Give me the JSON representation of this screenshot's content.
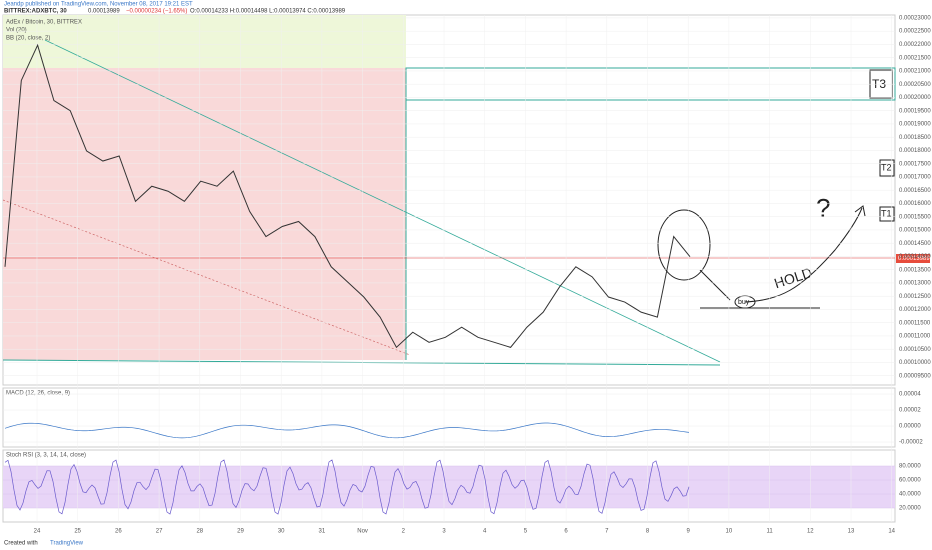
{
  "header": {
    "publisher": "Jeandp published on TradingView.com, November 08, 2017 19:21 EST",
    "symbol": "BITTREX:ADXBTC, 30",
    "last": "0.00013989",
    "change": "−0.00000234 (−1.65%)",
    "ohlc": "O:0.00014233 H:0.00014498 L:0.00013974 C:0.00013989"
  },
  "price_pane": {
    "legend": [
      "AdEx / Bitcoin, 30, BITTREX",
      "Vol (20)",
      "BB (20, close, 2)"
    ],
    "ylim": [
      9.15e-05,
      0.0002311
    ],
    "yticks": [
      {
        "value": 0.00023,
        "label": "0.00023000"
      },
      {
        "value": 0.000225,
        "label": "0.00022500"
      },
      {
        "value": 0.00022,
        "label": "0.00022000"
      },
      {
        "value": 0.000215,
        "label": "0.00021500"
      },
      {
        "value": 0.00021,
        "label": "0.00021000"
      },
      {
        "value": 0.000205,
        "label": "0.00020500"
      },
      {
        "value": 0.0002,
        "label": "0.00020000"
      },
      {
        "value": 0.000195,
        "label": "0.00019500"
      },
      {
        "value": 0.00019,
        "label": "0.00019000"
      },
      {
        "value": 0.000185,
        "label": "0.00018500"
      },
      {
        "value": 0.00018,
        "label": "0.00018000"
      },
      {
        "value": 0.000175,
        "label": "0.00017500"
      },
      {
        "value": 0.00017,
        "label": "0.00017000"
      },
      {
        "value": 0.000165,
        "label": "0.00016500"
      },
      {
        "value": 0.00016,
        "label": "0.00016000"
      },
      {
        "value": 0.000155,
        "label": "0.00015500"
      },
      {
        "value": 0.00015,
        "label": "0.00015000"
      },
      {
        "value": 0.000145,
        "label": "0.00014500"
      },
      {
        "value": 0.00014,
        "label": "0.00014000"
      },
      {
        "value": 0.000135,
        "label": "0.00013500"
      },
      {
        "value": 0.00013,
        "label": "0.00013000"
      },
      {
        "value": 0.000125,
        "label": "0.00012500"
      },
      {
        "value": 0.00012,
        "label": "0.00012000"
      },
      {
        "value": 0.000115,
        "label": "0.00011500"
      },
      {
        "value": 0.00011,
        "label": "0.00011000"
      },
      {
        "value": 0.000105,
        "label": "0.00010500"
      },
      {
        "value": 0.0001,
        "label": "0.00010000"
      },
      {
        "value": 9.5e-05,
        "label": "0.00009500"
      }
    ],
    "values": [
      0.0001361,
      0.0002064,
      0.0002197,
      0.0001988,
      0.000195,
      0.0001798,
      0.000176,
      0.0001779,
      0.0001608,
      0.0001665,
      0.0001646,
      0.0001608,
      0.0001684,
      0.0001665,
      0.0001722,
      0.000157,
      0.0001475,
      0.0001513,
      0.0001532,
      0.0001475,
      0.0001361,
      0.0001304,
      0.0001247,
      0.0001171,
      0.0001057,
      0.0001114,
      0.0001076,
      0.0001095,
      0.0001133,
      0.0001095,
      0.0001076,
      0.0001057,
      0.0001133,
      0.000119,
      0.0001285,
      0.0001361,
      0.0001323,
      0.0001247,
      0.0001228,
      0.000119,
      0.0001171,
      0.0001475,
      0.0001399
    ],
    "annotations": {
      "t3": "T3",
      "t2": "T2",
      "t1": "T1",
      "question": "?",
      "hold": "HOLD",
      "buy": "buy"
    }
  },
  "macd_pane": {
    "legend": "MACD (12, 26, close, 9)",
    "ylim": [
      -2.5e-05,
      4.5e-05
    ],
    "yticks": [
      {
        "value": 4e-05,
        "label": "0.00004"
      },
      {
        "value": 2e-05,
        "label": "0.00002"
      },
      {
        "value": 0,
        "label": "0.00000"
      },
      {
        "value": -2e-05,
        "label": "-0.00002"
      }
    ]
  },
  "stoch_pane": {
    "legend": "Stoch RSI (3, 3, 14, 14, close)",
    "ylim": [
      0,
      100
    ],
    "yticks": [
      {
        "value": 80,
        "label": "80.0000"
      },
      {
        "value": 60,
        "label": "60.0000"
      },
      {
        "value": 40,
        "label": "40.0000"
      },
      {
        "value": 20,
        "label": "20.0000"
      }
    ]
  },
  "x_axis": [
    "24",
    "25",
    "26",
    "27",
    "28",
    "29",
    "30",
    "31",
    "Nov",
    "2",
    "3",
    "4",
    "5",
    "6",
    "7",
    "8",
    "9",
    "10",
    "11",
    "12",
    "13",
    "14"
  ],
  "footer": {
    "created": "Created with",
    "brand": "TradingView"
  }
}
